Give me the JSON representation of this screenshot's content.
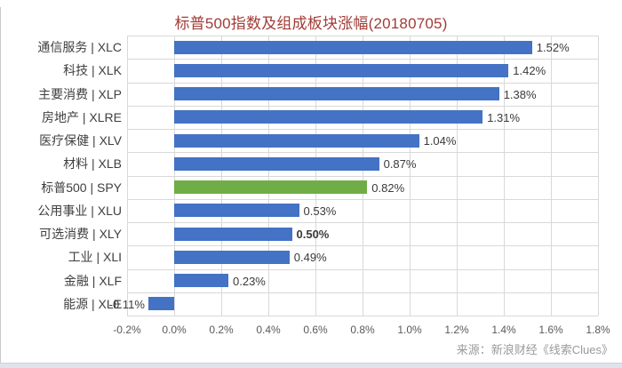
{
  "title": "标普500指数及组成板块涨幅(20180705)",
  "source": "来源：新浪财经《线索Clues》",
  "colors": {
    "bar": "#4472C4",
    "highlight": "#70AD47",
    "grid": "#D9D9D9",
    "title_text": "#A23C37",
    "category_text": "#3F3F3F",
    "value_text": "#3A3A3A",
    "axis_text": "#595959",
    "source_text": "#9A9A9A"
  },
  "chart_data": {
    "type": "bar",
    "orientation": "horizontal",
    "title": "标普500指数及组成板块涨幅(20180705)",
    "categories": [
      "通信服务 | XLC",
      "科技 | XLK",
      "主要消费 | XLP",
      "房地产 | XLRE",
      "医疗保健 | XLV",
      "材料 | XLB",
      "标普500 | SPY",
      "公用事业 | XLU",
      "可选消费 | XLY",
      "工业 | XLI",
      "金融 | XLF",
      "能源 | XLE"
    ],
    "values": [
      1.52,
      1.42,
      1.38,
      1.31,
      1.04,
      0.87,
      0.82,
      0.53,
      0.5,
      0.49,
      0.23,
      -0.11
    ],
    "value_labels": [
      "1.52%",
      "1.42%",
      "1.38%",
      "1.31%",
      "1.04%",
      "0.87%",
      "0.82%",
      "0.53%",
      "0.50%",
      "0.49%",
      "0.23%",
      "-0.11%"
    ],
    "highlight_index": 6,
    "bold_value_label_index": 8,
    "xlim": [
      -0.2,
      1.8
    ],
    "x_ticks": [
      "-0.2%",
      "0.0%",
      "0.2%",
      "0.4%",
      "0.6%",
      "0.8%",
      "1.0%",
      "1.2%",
      "1.4%",
      "1.6%",
      "1.8%"
    ],
    "grid": true,
    "legend": "none"
  }
}
